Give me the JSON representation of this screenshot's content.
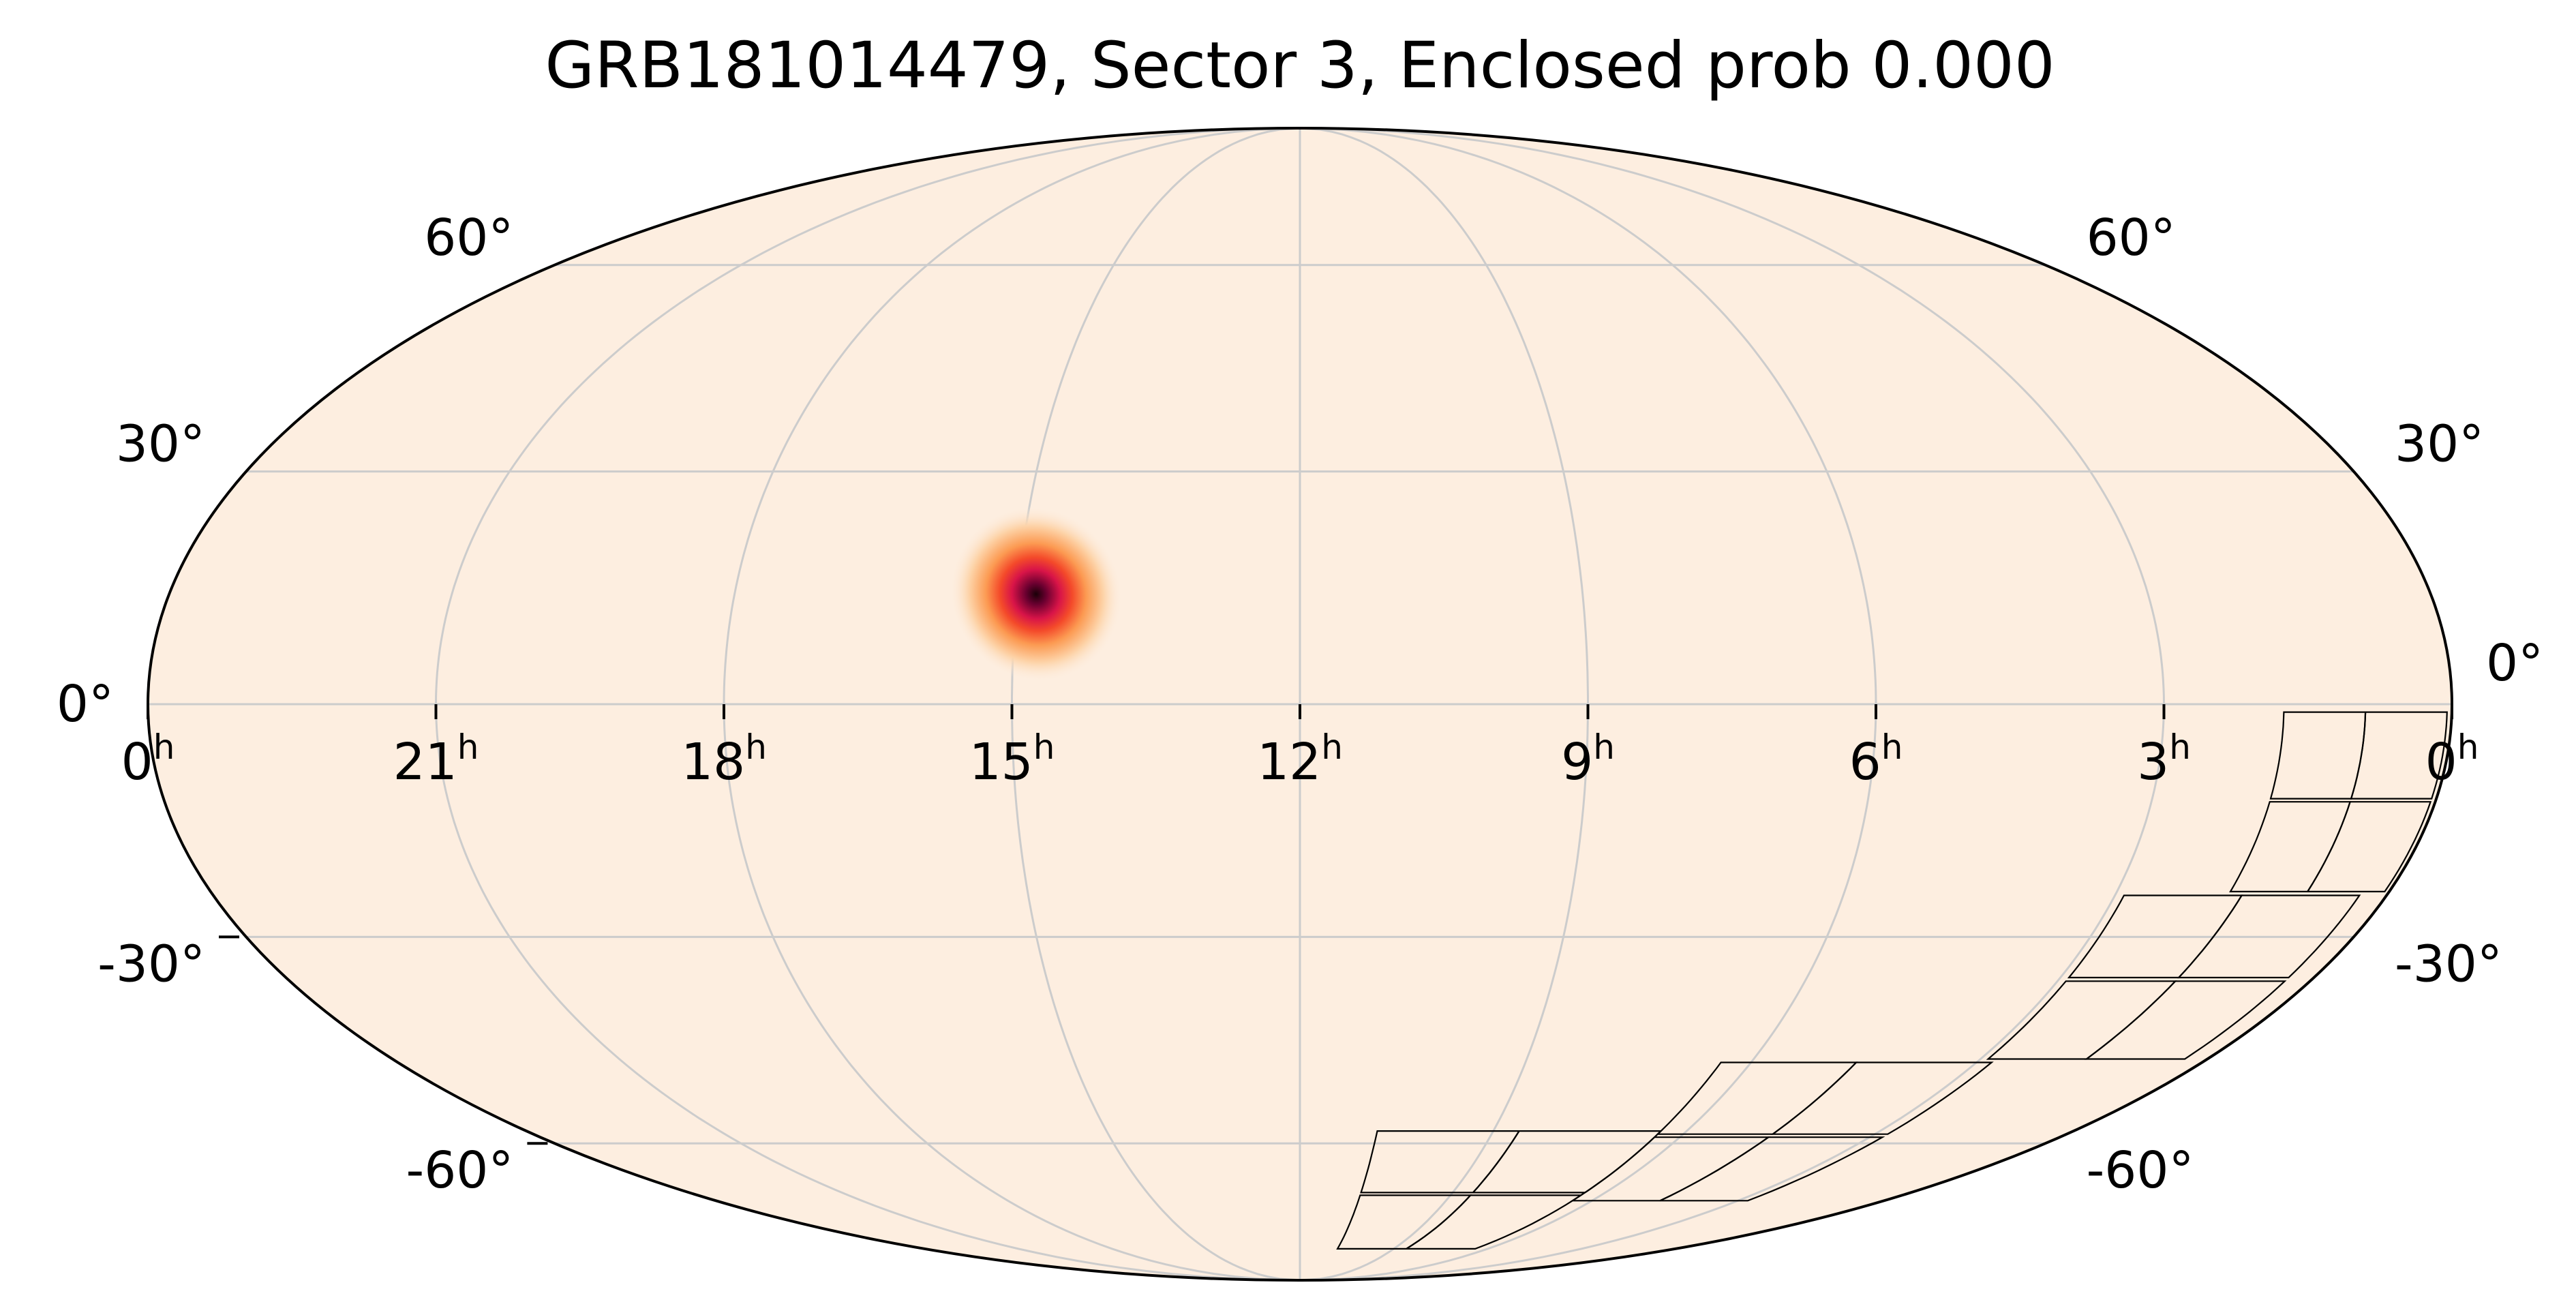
{
  "title": "GRB181014479, Sector 3, Enclosed prob 0.000",
  "chart_data": {
    "type": "heatmap",
    "projection": "mollweide",
    "title": "GRB181014479, Sector 3, Enclosed prob 0.000",
    "ra_ticks": [
      {
        "label": "0",
        "sup": "h",
        "ra_hours": 24
      },
      {
        "label": "21",
        "sup": "h",
        "ra_hours": 21
      },
      {
        "label": "18",
        "sup": "h",
        "ra_hours": 18
      },
      {
        "label": "15",
        "sup": "h",
        "ra_hours": 15
      },
      {
        "label": "12",
        "sup": "h",
        "ra_hours": 12
      },
      {
        "label": "9",
        "sup": "h",
        "ra_hours": 9
      },
      {
        "label": "6",
        "sup": "h",
        "ra_hours": 6
      },
      {
        "label": "3",
        "sup": "h",
        "ra_hours": 3
      },
      {
        "label": "0",
        "sup": "h",
        "ra_hours": 0
      }
    ],
    "dec_ticks_left": [
      {
        "label": "60°",
        "dec": 60
      },
      {
        "label": "30°",
        "dec": 30
      },
      {
        "label": "0°",
        "dec": 0
      },
      {
        "label": "-30°",
        "dec": -30
      },
      {
        "label": "-60°",
        "dec": -60
      }
    ],
    "dec_ticks_right": [
      {
        "label": "60°",
        "dec": 60
      },
      {
        "label": "30°",
        "dec": 30
      },
      {
        "label": "0°",
        "dec": 0
      },
      {
        "label": "-30°",
        "dec": -30
      },
      {
        "label": "-60°",
        "dec": -60
      }
    ],
    "ra_range_hours": [
      0,
      24
    ],
    "dec_range_deg": [
      -90,
      90
    ],
    "ra_direction": "increasing-right-to-left",
    "grid": true,
    "colormap": "light-peach-to-red-to-black",
    "background_color": "#fdeee0",
    "grid_color": "#cccccc",
    "probability_peak": {
      "ra_hours": 14.8,
      "dec_deg": 14,
      "sigma_deg": 4.5
    },
    "footprint_sector": "3",
    "footprint_cameras": [
      {
        "camera": 1,
        "ccds": [
          {
            "ra": [
              [
                0.05,
                -1
              ],
              [
                0.9,
                -1
              ],
              [
                0.9,
                -12
              ],
              [
                0.05,
                -12
              ]
            ]
          },
          {
            "ra": [
              [
                0.9,
                -1
              ],
              [
                1.75,
                -1
              ],
              [
                1.75,
                -12
              ],
              [
                0.9,
                -12
              ]
            ]
          },
          {
            "ra": [
              [
                0.05,
                -12.4
              ],
              [
                0.9,
                -12.4
              ],
              [
                0.9,
                -24
              ],
              [
                0.05,
                -24
              ]
            ]
          },
          {
            "ra": [
              [
                0.9,
                -12.4
              ],
              [
                1.75,
                -12.4
              ],
              [
                1.75,
                -24
              ],
              [
                0.9,
                -24
              ]
            ]
          }
        ]
      },
      {
        "camera": 2,
        "ccds": [
          {
            "ra": [
              [
                0.3,
                -24.5
              ],
              [
                1.6,
                -24.5
              ],
              [
                1.6,
                -35.5
              ],
              [
                0.3,
                -35.5
              ]
            ]
          },
          {
            "ra": [
              [
                1.6,
                -24.5
              ],
              [
                2.9,
                -24.5
              ],
              [
                2.9,
                -35.5
              ],
              [
                1.6,
                -35.5
              ]
            ]
          },
          {
            "ra": [
              [
                0.3,
                -36
              ],
              [
                1.6,
                -36
              ],
              [
                1.6,
                -47
              ],
              [
                0.3,
                -47
              ]
            ]
          },
          {
            "ra": [
              [
                1.6,
                -36
              ],
              [
                2.9,
                -36
              ],
              [
                2.9,
                -47
              ],
              [
                1.6,
                -47
              ]
            ]
          }
        ]
      },
      {
        "camera": 3,
        "ccds": [
          {
            "ra": [
              [
                2.8,
                -47.5
              ],
              [
                4.6,
                -47.5
              ],
              [
                4.6,
                -58.5
              ],
              [
                2.8,
                -58.5
              ]
            ]
          },
          {
            "ra": [
              [
                4.6,
                -47.5
              ],
              [
                6.4,
                -47.5
              ],
              [
                6.4,
                -58.5
              ],
              [
                4.6,
                -58.5
              ]
            ]
          },
          {
            "ra": [
              [
                2.8,
                -59
              ],
              [
                4.6,
                -59
              ],
              [
                4.6,
                -70
              ],
              [
                2.8,
                -70
              ]
            ]
          },
          {
            "ra": [
              [
                4.6,
                -59
              ],
              [
                6.4,
                -59
              ],
              [
                6.4,
                -70
              ],
              [
                4.6,
                -70
              ]
            ]
          }
        ]
      },
      {
        "camera": 4,
        "ccds": [
          {
            "ra": [
              [
                6.4,
                -58
              ],
              [
                8.6,
                -58
              ],
              [
                8.6,
                -68.5
              ],
              [
                6.4,
                -68.5
              ]
            ]
          },
          {
            "ra": [
              [
                8.6,
                -58
              ],
              [
                10.8,
                -58
              ],
              [
                10.8,
                -68.5
              ],
              [
                8.6,
                -68.5
              ]
            ]
          },
          {
            "ra": [
              [
                6.4,
                -69
              ],
              [
                8.6,
                -69
              ],
              [
                8.6,
                -80
              ],
              [
                6.4,
                -80
              ]
            ]
          },
          {
            "ra": [
              [
                8.6,
                -69
              ],
              [
                10.8,
                -69
              ],
              [
                10.8,
                -80
              ],
              [
                8.6,
                -80
              ]
            ]
          }
        ]
      }
    ]
  }
}
